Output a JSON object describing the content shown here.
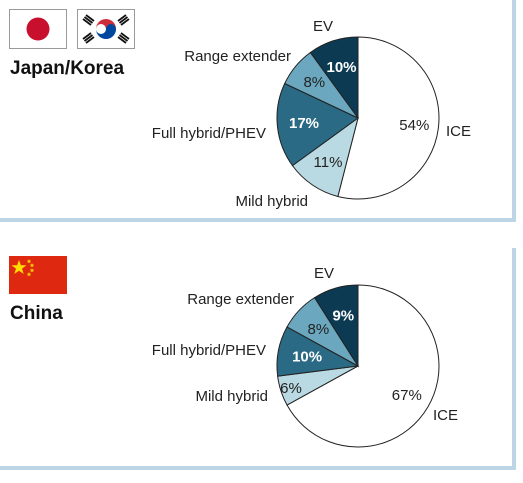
{
  "chart_data": [
    {
      "type": "pie",
      "region": "Japan/Korea",
      "slices": [
        {
          "label": "ICE",
          "value": 54,
          "pct_text": "54%",
          "color": "#ffffff",
          "text_color": "#222222"
        },
        {
          "label": "Mild hybrid",
          "value": 11,
          "pct_text": "11%",
          "color": "#b9d9e3",
          "text_color": "#222222"
        },
        {
          "label": "Full hybrid/PHEV",
          "value": 17,
          "pct_text": "17%",
          "color": "#2a6a84",
          "text_color": "#ffffff"
        },
        {
          "label": "Range extender",
          "value": 8,
          "pct_text": "8%",
          "color": "#6ba8c0",
          "text_color": "#222222"
        },
        {
          "label": "EV",
          "value": 10,
          "pct_text": "10%",
          "color": "#0b3a52",
          "text_color": "#ffffff"
        }
      ]
    },
    {
      "type": "pie",
      "region": "China",
      "slices": [
        {
          "label": "ICE",
          "value": 67,
          "pct_text": "67%",
          "color": "#ffffff",
          "text_color": "#222222"
        },
        {
          "label": "Mild hybrid",
          "value": 6,
          "pct_text": "6%",
          "color": "#b9d9e3",
          "text_color": "#222222"
        },
        {
          "label": "Full hybrid/PHEV",
          "value": 10,
          "pct_text": "10%",
          "color": "#2a6a84",
          "text_color": "#ffffff"
        },
        {
          "label": "Range extender",
          "value": 8,
          "pct_text": "8%",
          "color": "#6ba8c0",
          "text_color": "#222222"
        },
        {
          "label": "EV",
          "value": 9,
          "pct_text": "9%",
          "color": "#0b3a52",
          "text_color": "#ffffff"
        }
      ]
    }
  ],
  "flags": {
    "japan": {
      "name": "japan-flag",
      "bg": "#ffffff",
      "disc": "#c8102e"
    },
    "korea": {
      "name": "korea-flag",
      "bg": "#ffffff",
      "red": "#cd2e3a",
      "blue": "#0047a0"
    },
    "china": {
      "name": "china-flag",
      "bg": "#de2910",
      "star": "#ffde00"
    }
  }
}
